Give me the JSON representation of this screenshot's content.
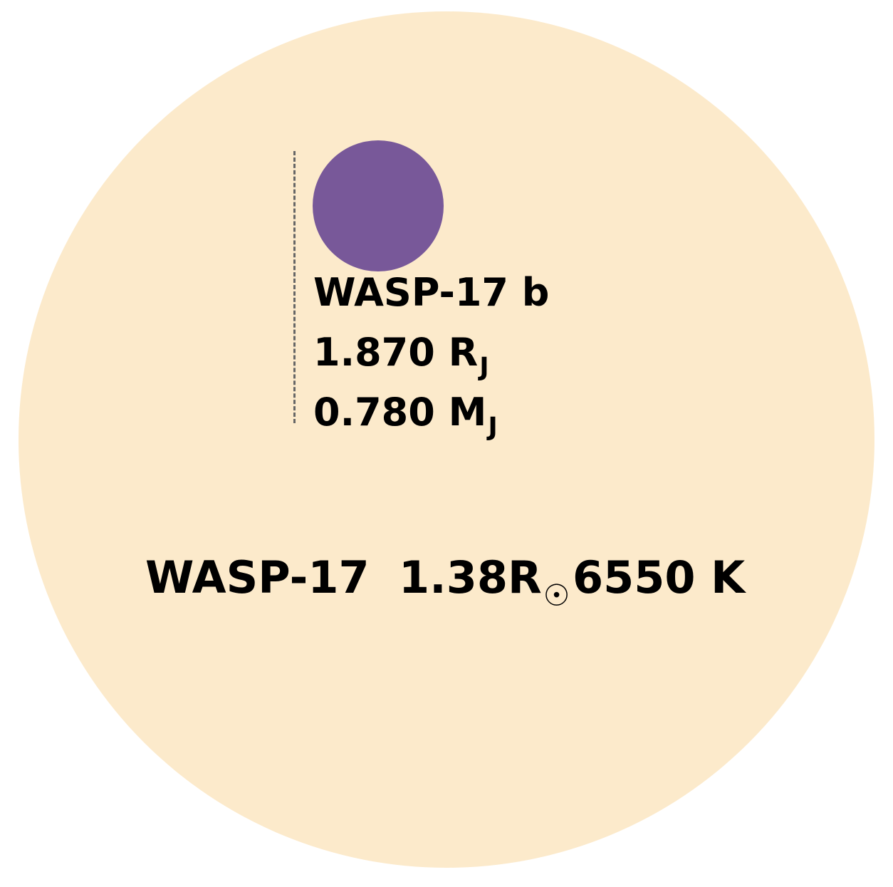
{
  "colors": {
    "star_fill": "#FCEACB",
    "planet_fill": "#785899",
    "guide_stroke": "#666666",
    "text": "#000000"
  },
  "planet": {
    "name": "WASP-17 b",
    "radius_value": "1.870 R",
    "radius_unit_sub": "J",
    "mass_value": "0.780 M",
    "mass_unit_sub": "J"
  },
  "star": {
    "name": "WASP-17",
    "radius_value": "1.38R",
    "radius_unit_sub": "☉",
    "temperature": "6550 K"
  }
}
